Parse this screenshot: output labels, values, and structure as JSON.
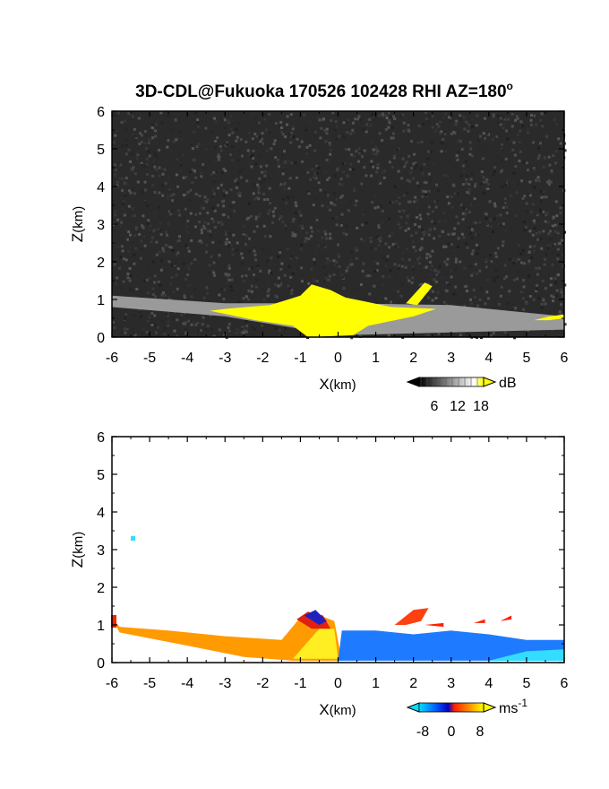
{
  "chart_data": [
    {
      "type": "heatmap",
      "title": "3D-CDL@Fukuoka 170526 102428 RHI AZ=180",
      "title_superscript": "o",
      "xlabel_main": "X",
      "xlabel_unit": "(km)",
      "ylabel_main": "Z",
      "ylabel_unit": "(km)",
      "xlim": [
        -6,
        6
      ],
      "ylim": [
        0,
        6
      ],
      "xticks": [
        "-6",
        "-5",
        "-4",
        "-3",
        "-2",
        "-1",
        "0",
        "1",
        "2",
        "3",
        "4",
        "5",
        "6"
      ],
      "yticks": [
        "0",
        "1",
        "2",
        "3",
        "4",
        "5",
        "6"
      ],
      "colorbar": {
        "unit": "dB",
        "ticks": [
          "6",
          "12",
          "18"
        ],
        "range": [
          0,
          20
        ],
        "colors": [
          "#000000",
          "#ffffff",
          "#ffff00"
        ]
      },
      "background_color": "#2a2a2a",
      "features": [
        {
          "name": "noise",
          "value": "low noise (~2-6 dB)",
          "color": "#2e2e2e"
        },
        {
          "name": "ground-clutter band",
          "value": "gray echo from (-6,1.1) to (6,0.5)",
          "color": "#9a9a9a"
        },
        {
          "name": "saturated echo",
          "value": ">=18 dB",
          "color": "#ffff00"
        }
      ]
    },
    {
      "type": "heatmap",
      "xlabel_main": "X",
      "xlabel_unit": "(km)",
      "ylabel_main": "Z",
      "ylabel_unit": "(km)",
      "xlim": [
        -6,
        6
      ],
      "ylim": [
        0,
        6
      ],
      "xticks": [
        "-6",
        "-5",
        "-4",
        "-3",
        "-2",
        "-1",
        "0",
        "1",
        "2",
        "3",
        "4",
        "5",
        "6"
      ],
      "yticks": [
        "0",
        "1",
        "2",
        "3",
        "4",
        "5",
        "6"
      ],
      "colorbar": {
        "unit": "ms",
        "unit_exponent": "-1",
        "ticks": [
          "-8",
          "0",
          "8"
        ],
        "range": [
          -10,
          10
        ],
        "colors": [
          "#00e0ff",
          "#0060ff",
          "#0000c0",
          "#ff2000",
          "#ff9000",
          "#ffff00"
        ]
      },
      "background_color": "#ffffff",
      "features": [
        {
          "name": "approaching (negative X side)",
          "value": "positive velocity, orange/yellow",
          "color": "#ff9a00"
        },
        {
          "name": "receding (positive X side)",
          "value": "negative velocity, blue",
          "color": "#1e7bff"
        },
        {
          "name": "isolated gate",
          "value": "cyan pixel near (-5.5, 3.3)",
          "color": "#33ddff"
        }
      ]
    }
  ]
}
